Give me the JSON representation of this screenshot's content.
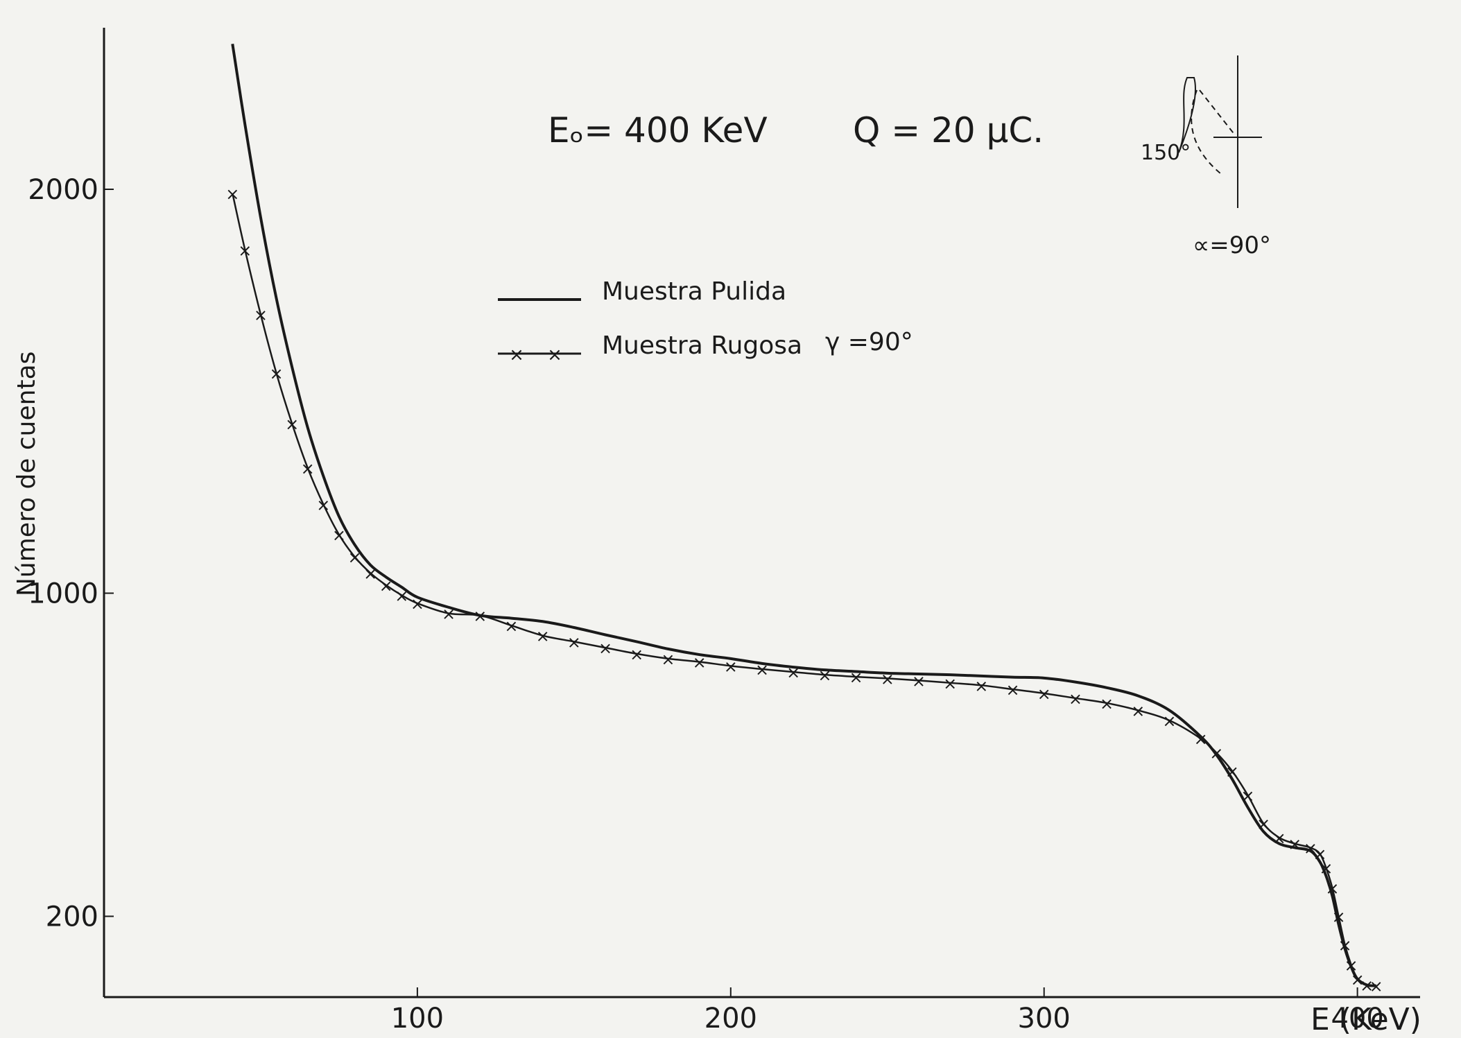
{
  "chart_data": {
    "type": "line",
    "title": "Eₒ= 400 KeV",
    "subtitle": "Q = 20 μC.",
    "xlabel": "E (KeV)",
    "ylabel": "Número de cuentas",
    "xlim": [
      0,
      420
    ],
    "ylim": [
      0,
      2400
    ],
    "x_ticks": [
      100,
      200,
      300,
      400
    ],
    "y_ticks": [
      200,
      1000,
      2000
    ],
    "grid": false,
    "legend_position": "top-center",
    "legend_note": "γ =90°",
    "inset_labels": {
      "angle_label": "150°",
      "alpha_label": "∝=90°"
    },
    "series": [
      {
        "name": "Muestra Pulida",
        "style": "solid",
        "x": [
          41,
          45,
          50,
          55,
          60,
          65,
          70,
          75,
          80,
          85,
          90,
          95,
          100,
          110,
          120,
          130,
          140,
          150,
          160,
          170,
          180,
          190,
          200,
          210,
          220,
          230,
          240,
          250,
          260,
          270,
          280,
          290,
          300,
          310,
          320,
          330,
          340,
          350,
          355,
          360,
          365,
          370,
          375,
          380,
          385,
          388,
          390,
          392,
          394,
          396,
          398,
          400,
          403,
          406
        ],
        "values": [
          2360,
          2160,
          1930,
          1730,
          1560,
          1410,
          1290,
          1190,
          1120,
          1070,
          1040,
          1015,
          990,
          965,
          945,
          938,
          930,
          915,
          897,
          880,
          862,
          848,
          838,
          826,
          817,
          810,
          806,
          802,
          800,
          798,
          795,
          792,
          790,
          780,
          766,
          746,
          710,
          645,
          600,
          540,
          470,
          410,
          380,
          370,
          362,
          335,
          300,
          250,
          180,
          120,
          75,
          45,
          30,
          28
        ]
      },
      {
        "name": "Muestra Rugosa",
        "style": "solid-with-x-markers",
        "x": [
          41,
          45,
          50,
          55,
          60,
          65,
          70,
          75,
          80,
          85,
          90,
          95,
          100,
          110,
          120,
          130,
          140,
          150,
          160,
          170,
          180,
          190,
          200,
          210,
          220,
          230,
          240,
          250,
          260,
          270,
          280,
          290,
          300,
          310,
          320,
          330,
          340,
          350,
          355,
          360,
          365,
          370,
          375,
          380,
          385,
          388,
          390,
          392,
          394,
          396,
          398,
          400,
          403,
          406
        ],
        "values": [
          1990,
          1850,
          1690,
          1545,
          1420,
          1310,
          1220,
          1145,
          1090,
          1050,
          1020,
          995,
          975,
          950,
          945,
          920,
          895,
          880,
          865,
          850,
          838,
          830,
          820,
          812,
          805,
          798,
          793,
          789,
          784,
          778,
          772,
          762,
          752,
          740,
          728,
          710,
          685,
          640,
          605,
          560,
          500,
          430,
          395,
          380,
          370,
          355,
          320,
          270,
          200,
          130,
          80,
          45,
          30,
          28
        ]
      }
    ]
  }
}
